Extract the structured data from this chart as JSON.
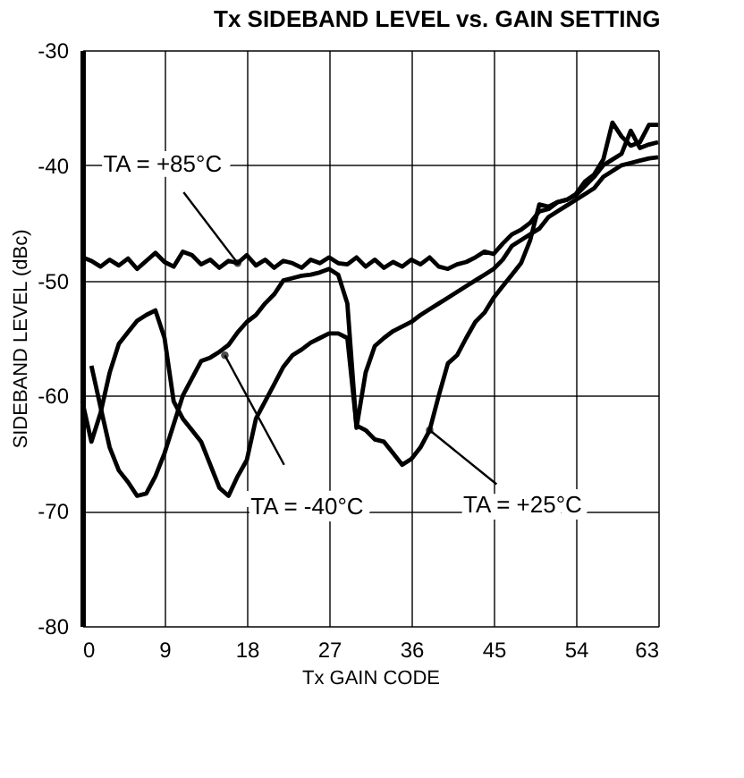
{
  "chart_data": {
    "type": "line",
    "title": "Tx SIDEBAND LEVEL vs. GAIN SETTING",
    "xlabel": "Tx GAIN CODE",
    "ylabel": "SIDEBAND LEVEL (dBc)",
    "xlim": [
      0,
      63
    ],
    "xticks": [
      0,
      9,
      18,
      27,
      36,
      45,
      54,
      63
    ],
    "ylim": [
      -80,
      -30
    ],
    "yticks": [
      -80,
      -70,
      -60,
      -50,
      -40,
      -30
    ],
    "grid": true,
    "marker": "none",
    "line_style": "solid",
    "series": [
      {
        "color": "#000000",
        "x": [
          0,
          1,
          2,
          3,
          4,
          5,
          6,
          7,
          8,
          9,
          10,
          11,
          12,
          13,
          14,
          15,
          16,
          17,
          18,
          19,
          20,
          21,
          22,
          23,
          24,
          25,
          26,
          27,
          28,
          29,
          30,
          31,
          32,
          33,
          34,
          35,
          36,
          37,
          38,
          39,
          40,
          41,
          42,
          43,
          44,
          45,
          46,
          47,
          48,
          49,
          50,
          51,
          52,
          53,
          54,
          55,
          56,
          57,
          58,
          59,
          60,
          61,
          62,
          63
        ],
        "values": [
          -48,
          -48.3,
          -48.8,
          -48.2,
          -48.7,
          -48.1,
          -49,
          -48.3,
          -47.6,
          -48.4,
          -48.8,
          -47.5,
          -47.8,
          -48.6,
          -48.2,
          -48.9,
          -48.3,
          -48.5,
          -47.8,
          -48.7,
          -48.2,
          -48.9,
          -48.3,
          -48.5,
          -48.9,
          -48.2,
          -48.5,
          -48,
          -48.5,
          -48.6,
          -48,
          -48.8,
          -48.2,
          -48.9,
          -48.4,
          -48.8,
          -48.2,
          -48.6,
          -48,
          -48.8,
          -49,
          -48.6,
          -48.4,
          -48,
          -47.5,
          -47.7,
          -46.8,
          -46,
          -45.6,
          -45,
          -44,
          -43.8,
          -43.2,
          -43,
          -42.6,
          -41.8,
          -41,
          -40,
          -39.5,
          -39,
          -37,
          -38.5,
          -38.2,
          -38
        ]
      },
      {
        "color": "#000000",
        "x": [
          1,
          2,
          3,
          4,
          5,
          6,
          7,
          8,
          9,
          10,
          11,
          12,
          13,
          14,
          15,
          16,
          17,
          18,
          19,
          20,
          21,
          22,
          23,
          24,
          25,
          26,
          27,
          28,
          29,
          30,
          31,
          32,
          33,
          34,
          35,
          36,
          37,
          38,
          39,
          40,
          41,
          42,
          43,
          44,
          45,
          46,
          47,
          48,
          49,
          50,
          51,
          52,
          53,
          54,
          55,
          56,
          57,
          58,
          59,
          60,
          61,
          62,
          63
        ],
        "values": [
          -57.4,
          -61,
          -64.5,
          -66.5,
          -67.5,
          -68.7,
          -68.5,
          -67,
          -65,
          -62.5,
          -60,
          -58.5,
          -57,
          -56.7,
          -56.2,
          -55.6,
          -54.5,
          -53.6,
          -53,
          -52,
          -51.2,
          -50,
          -49.8,
          -49.6,
          -49.5,
          -49.3,
          -49,
          -49.5,
          -52,
          -62.8,
          -58,
          -55.7,
          -55,
          -54.4,
          -54,
          -53.6,
          -53,
          -52.5,
          -52,
          -51.5,
          -51,
          -50.5,
          -50,
          -49.5,
          -49,
          -48.2,
          -47,
          -46.5,
          -46,
          -45.5,
          -44.5,
          -44,
          -43.5,
          -43,
          -42.5,
          -42,
          -41,
          -40.5,
          -40,
          -39.8,
          -39.6,
          -39.4,
          -39.3
        ]
      },
      {
        "color": "#000000",
        "x": [
          0,
          1,
          2,
          3,
          4,
          5,
          6,
          7,
          8,
          9,
          10,
          11,
          12,
          13,
          14,
          15,
          16,
          17,
          18,
          19,
          20,
          21,
          22,
          23,
          24,
          25,
          26,
          27,
          28,
          29,
          30,
          31,
          32,
          33,
          34,
          35,
          36,
          37,
          38,
          39,
          40,
          41,
          42,
          43,
          44,
          45,
          46,
          47,
          48,
          49,
          50,
          51,
          52,
          53,
          54,
          55,
          56,
          57,
          58,
          59,
          60,
          61,
          62,
          63
        ],
        "values": [
          -60.5,
          -64,
          -61.5,
          -58,
          -55.5,
          -54.5,
          -53.5,
          -53,
          -52.6,
          -55,
          -60.5,
          -62,
          -63,
          -64,
          -66,
          -68,
          -68.7,
          -67,
          -65.6,
          -62,
          -60.5,
          -59,
          -57.5,
          -56.5,
          -56,
          -55.4,
          -55,
          -54.6,
          -54.6,
          -55,
          -62.6,
          -63,
          -63.8,
          -64,
          -65,
          -66,
          -65.5,
          -64.5,
          -63,
          -60,
          -57.2,
          -56.5,
          -55,
          -53.6,
          -52.8,
          -51.5,
          -50.5,
          -49.5,
          -48.5,
          -46.5,
          -43.4,
          -43.6,
          -43.2,
          -43,
          -42.5,
          -41.4,
          -40.8,
          -39.5,
          -36.3,
          -37.5,
          -38.3,
          -38,
          -36.5,
          -36.5
        ]
      }
    ],
    "annotations": [
      {
        "text": "TA = +85°C",
        "x": 17,
        "y": -48.5
      },
      {
        "text": "TA = -40°C",
        "x": 15.6,
        "y": -56.5
      },
      {
        "text": "TA = +25°C",
        "x": 38,
        "y": -63
      }
    ]
  }
}
